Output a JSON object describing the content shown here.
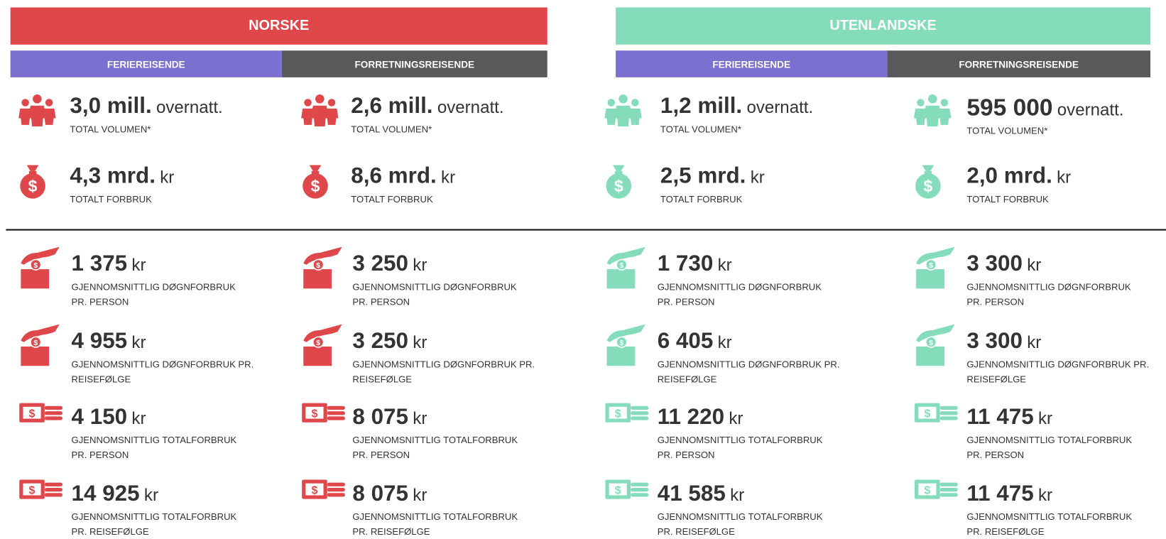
{
  "groups": [
    {
      "title": "NORSKE",
      "columns": [
        {
          "header": "FERIEREISENDE",
          "items": [
            {
              "value": "3,0 mill.",
              "unit": "overnatt.",
              "label": [
                "TOTAL VOLUMEN*"
              ]
            },
            {
              "value": "4,3 mrd.",
              "unit": "kr",
              "label": [
                "TOTALT FORBRUK"
              ]
            },
            {
              "value": "1 375",
              "unit": "kr",
              "label": [
                "GJENNOMSNITTLIG DØGNFORBRUK",
                "PR. PERSON"
              ]
            },
            {
              "value": "4 955",
              "unit": "kr",
              "label": [
                "GJENNOMSNITTLIG DØGNFORBRUK PR.",
                "REISEFØLGE"
              ]
            },
            {
              "value": "4 150",
              "unit": "kr",
              "label": [
                "GJENNOMSNITTLIG TOTALFORBRUK",
                "PR. PERSON"
              ]
            },
            {
              "value": "14 925",
              "unit": "kr",
              "label": [
                "GJENNOMSNITTLIG TOTALFORBRUK",
                "PR. REISEFØLGE"
              ]
            }
          ]
        },
        {
          "header": "FORRETNINGSREISENDE",
          "items": [
            {
              "value": "2,6 mill.",
              "unit": "overnatt.",
              "label": [
                "TOTAL VOLUMEN*"
              ]
            },
            {
              "value": "8,6 mrd.",
              "unit": "kr",
              "label": [
                "TOTALT FORBRUK"
              ]
            },
            {
              "value": "3 250",
              "unit": "kr",
              "label": [
                "GJENNOMSNITTLIG DØGNFORBRUK",
                "PR. PERSON"
              ]
            },
            {
              "value": "3 250",
              "unit": "kr",
              "label": [
                "GJENNOMSNITTLIG DØGNFORBRUK PR.",
                "REISEFØLGE"
              ]
            },
            {
              "value": "8 075",
              "unit": "kr",
              "label": [
                "GJENNOMSNITTLIG TOTALFORBRUK",
                "PR. PERSON"
              ]
            },
            {
              "value": "8 075",
              "unit": "kr",
              "label": [
                "GJENNOMSNITTLIG TOTALFORBRUK",
                "PR. REISEFØLGE"
              ]
            }
          ]
        }
      ]
    },
    {
      "title": "UTENLANDSKE",
      "columns": [
        {
          "header": "FERIEREISENDE",
          "items": [
            {
              "value": "1,2 mill.",
              "unit": "overnatt.",
              "label": [
                "TOTAL VOLUMEN*"
              ]
            },
            {
              "value": "2,5 mrd.",
              "unit": "kr",
              "label": [
                "TOTALT FORBRUK"
              ]
            },
            {
              "value": "1 730",
              "unit": "kr",
              "label": [
                "GJENNOMSNITTLIG DØGNFORBRUK",
                "PR. PERSON"
              ]
            },
            {
              "value": "6 405",
              "unit": "kr",
              "label": [
                "GJENNOMSNITTLIG DØGNFORBRUK PR.",
                "REISEFØLGE"
              ]
            },
            {
              "value": "11 220",
              "unit": "kr",
              "label": [
                "GJENNOMSNITTLIG TOTALFORBRUK",
                "PR. PERSON"
              ]
            },
            {
              "value": "41 585",
              "unit": "kr",
              "label": [
                "GJENNOMSNITTLIG TOTALFORBRUK",
                "PR. REISEFØLGE"
              ]
            }
          ]
        },
        {
          "header": "FORRETNINGSREISENDE",
          "items": [
            {
              "value": "595 000",
              "unit": "overnatt.",
              "label": [
                "TOTAL VOLUMEN*"
              ]
            },
            {
              "value": "2,0 mrd.",
              "unit": "kr",
              "label": [
                "TOTALT FORBRUK"
              ]
            },
            {
              "value": "3 300",
              "unit": "kr",
              "label": [
                "GJENNOMSNITTLIG DØGNFORBRUK",
                "PR. PERSON"
              ]
            },
            {
              "value": "3 300",
              "unit": "kr",
              "label": [
                "GJENNOMSNITTLIG DØGNFORBRUK PR.",
                "REISEFØLGE"
              ]
            },
            {
              "value": "11 475",
              "unit": "kr",
              "label": [
                "GJENNOMSNITTLIG TOTALFORBRUK",
                "PR. PERSON"
              ]
            },
            {
              "value": "11 475",
              "unit": "kr",
              "label": [
                "GJENNOMSNITTLIG TOTALFORBRUK",
                "PR. REISEFØLGE"
              ]
            }
          ]
        }
      ]
    }
  ]
}
